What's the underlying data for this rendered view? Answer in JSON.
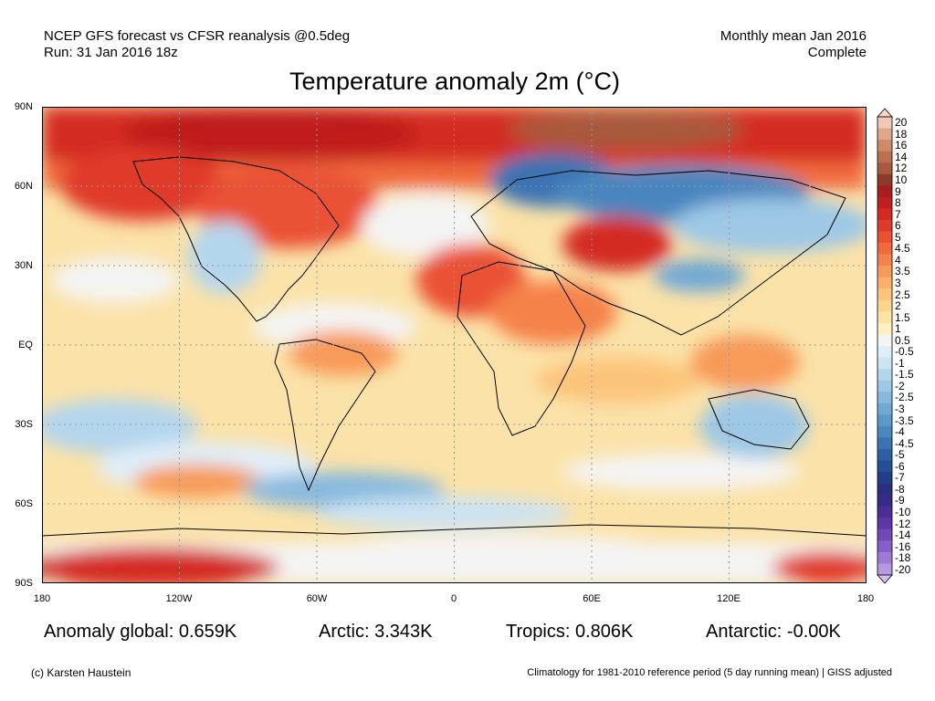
{
  "header": {
    "line1_left": "NCEP GFS forecast vs CFSR reanalysis @0.5deg",
    "line2_left": "Run: 31 Jan 2016 18z",
    "line1_right": "Monthly mean Jan 2016",
    "line2_right": "Complete"
  },
  "title": "Temperature anomaly 2m (°C)",
  "axes": {
    "y_ticks": [
      "90N",
      "60N",
      "30N",
      "EQ",
      "30S",
      "60S",
      "90S"
    ],
    "x_ticks": [
      "180",
      "120W",
      "60W",
      "0",
      "60E",
      "120E",
      "180"
    ]
  },
  "stats": {
    "global": "Anomaly global: 0.659K",
    "arctic": "Arctic: 3.343K",
    "tropics": "Tropics: 0.806K",
    "antarctic": "Antarctic: -0.00K"
  },
  "colorbar": {
    "labels": [
      "20",
      "18",
      "16",
      "14",
      "12",
      "10",
      "9",
      "8",
      "7",
      "6",
      "5",
      "4.5",
      "4",
      "3.5",
      "3",
      "2.5",
      "2",
      "1.5",
      "1",
      "0.5",
      "-0.5",
      "-1",
      "-1.5",
      "-2",
      "-2.5",
      "-3",
      "-3.5",
      "-4",
      "-4.5",
      "-5",
      "-6",
      "-7",
      "-8",
      "-9",
      "-10",
      "-12",
      "-14",
      "-16",
      "-18",
      "-20"
    ],
    "colors": [
      "#f0c8b4",
      "#e0a68a",
      "#cf8a6a",
      "#bd6e4e",
      "#a85a3c",
      "#8e3a28",
      "#a81e1e",
      "#c01f1f",
      "#d42a24",
      "#e03a2c",
      "#ea5134",
      "#f06a3c",
      "#f5824a",
      "#f89a58",
      "#fbb068",
      "#fcc47a",
      "#fdd68e",
      "#fee3a4",
      "#fff0c0",
      "#f4f4f4",
      "#e0eef8",
      "#cbe3f3",
      "#b4d6ed",
      "#9dc8e6",
      "#87b9de",
      "#71a9d4",
      "#5c98ca",
      "#4a86bf",
      "#3b73b3",
      "#2e5fa5",
      "#264e97",
      "#223d89",
      "#2a2f7e",
      "#382a86",
      "#4a2d95",
      "#5c38a6",
      "#7048b8",
      "#8660c8",
      "#9c7ad6",
      "#b498e2"
    ],
    "top_arrow_color": "#f8d8c8",
    "bottom_arrow_color": "#d0c0ee"
  },
  "footer": {
    "left": "(c) Karsten Haustein",
    "right": "Climatology for 1981-2010 reference period (5 day running mean) | GISS adjusted"
  }
}
